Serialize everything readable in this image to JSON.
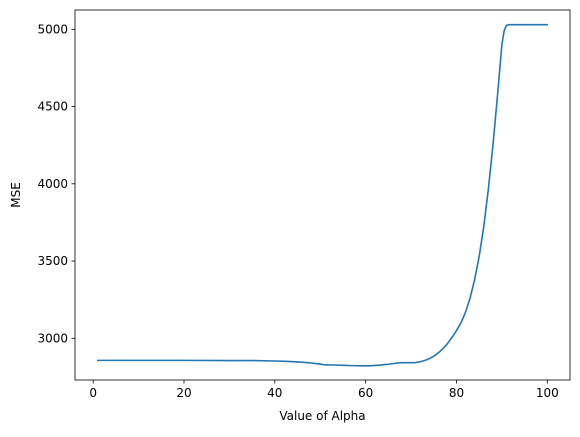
{
  "chart_data": {
    "type": "line",
    "title": "",
    "xlabel": "Value of Alpha",
    "ylabel": "MSE",
    "xlim": [
      -4,
      105
    ],
    "ylim": [
      2730,
      5125
    ],
    "x_ticks": [
      0,
      20,
      40,
      60,
      80,
      100
    ],
    "y_ticks": [
      3000,
      3500,
      4000,
      4500,
      5000
    ],
    "grid": false,
    "legend": "none",
    "series": [
      {
        "color": "#1f77b4",
        "x": [
          1,
          10,
          20,
          30,
          35,
          40,
          43,
          46,
          48,
          50,
          51,
          53,
          55,
          57,
          59,
          61,
          62,
          63,
          64,
          65,
          66,
          67,
          68,
          69,
          70,
          71,
          72,
          73,
          74,
          75,
          76,
          77,
          78,
          79,
          80,
          81,
          82,
          83,
          84,
          85,
          86,
          87,
          88,
          89,
          90,
          90.5,
          91,
          91.5,
          92,
          94,
          96,
          98,
          100
        ],
        "y": [
          2857,
          2857,
          2857,
          2856,
          2856,
          2853,
          2850,
          2845,
          2840,
          2833,
          2828,
          2827,
          2825,
          2823,
          2822,
          2822,
          2824,
          2826,
          2829,
          2832,
          2836,
          2840,
          2842,
          2842,
          2842,
          2843,
          2848,
          2856,
          2868,
          2884,
          2905,
          2932,
          2965,
          3005,
          3050,
          3100,
          3170,
          3260,
          3380,
          3530,
          3720,
          3960,
          4240,
          4560,
          4900,
          4990,
          5025,
          5030,
          5030,
          5030,
          5030,
          5030,
          5030
        ]
      }
    ]
  }
}
